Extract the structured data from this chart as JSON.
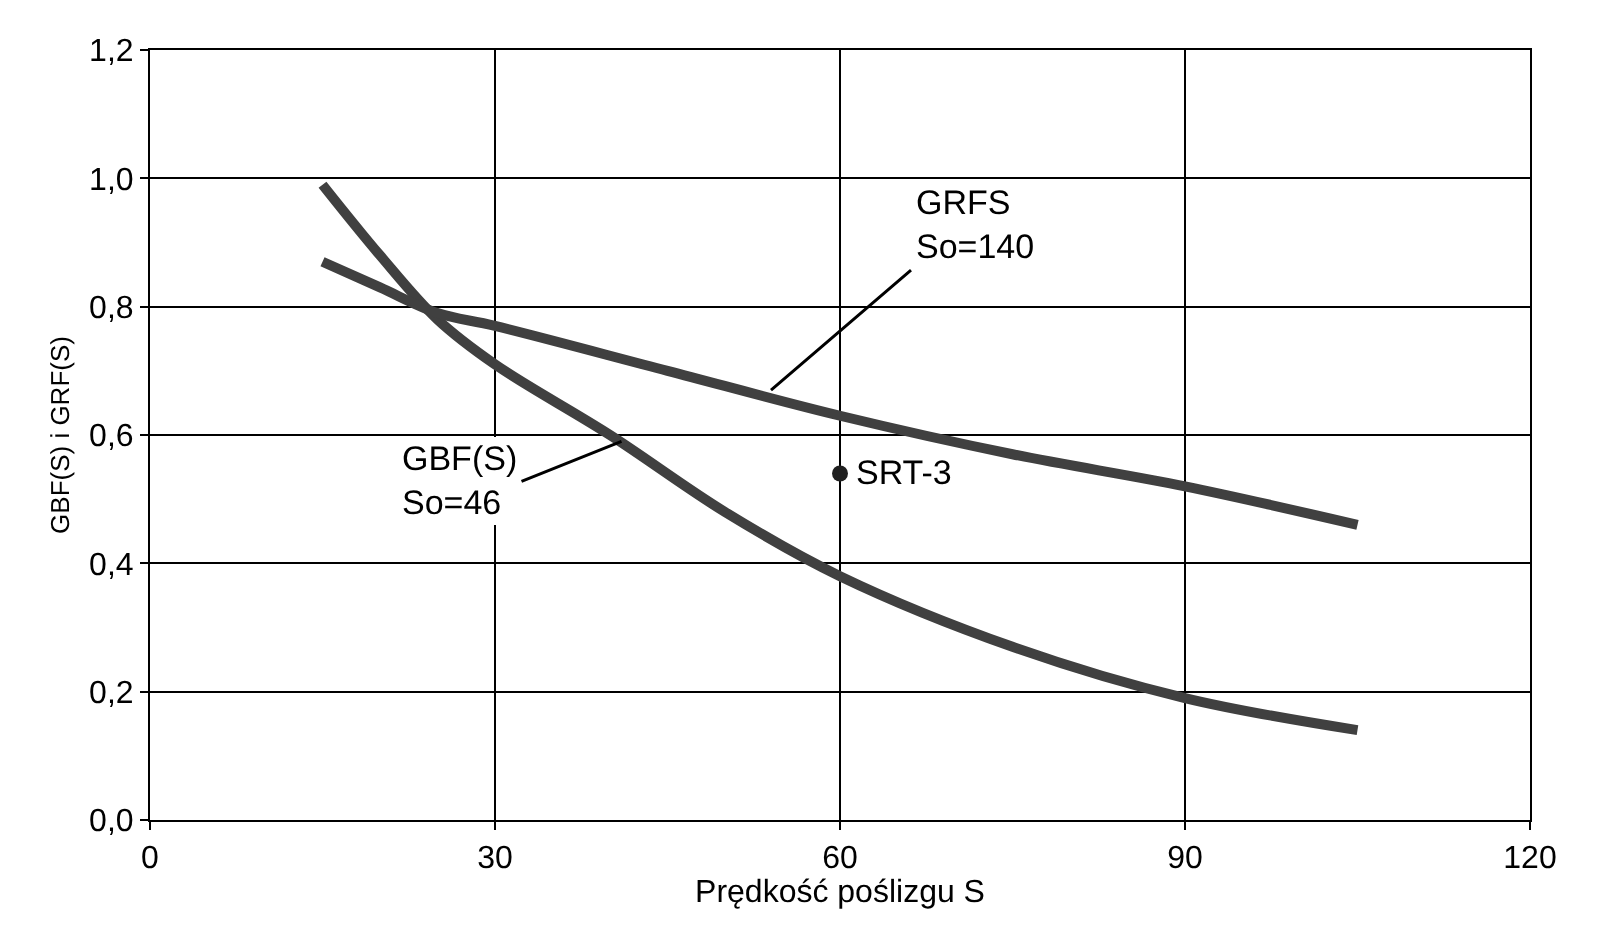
{
  "chart_data": {
    "type": "line",
    "xlabel": "Prędkość poślizgu S",
    "ylabel": "GBF(S) i GRF(S)",
    "xlim": [
      0,
      120
    ],
    "xticks": [
      0,
      30,
      60,
      90,
      120
    ],
    "ylim": [
      0,
      1.2
    ],
    "yticks": [
      {
        "value": 0,
        "label": "0,0"
      },
      {
        "value": 0.2,
        "label": "0,2"
      },
      {
        "value": 0.4,
        "label": "0,4"
      },
      {
        "value": 0.6,
        "label": "0,6"
      },
      {
        "value": 0.8,
        "label": "0,8"
      },
      {
        "value": 1.0,
        "label": "1,0"
      },
      {
        "value": 1.2,
        "label": "1,2"
      }
    ],
    "grid": true,
    "marker": "none",
    "line_style": "solid",
    "series": [
      {
        "color": "#404040",
        "x": [
          15,
          20,
          25,
          30,
          40,
          50,
          60,
          75,
          90,
          105
        ],
        "values": [
          0.99,
          0.88,
          0.78,
          0.71,
          0.6,
          0.48,
          0.38,
          0.27,
          0.19,
          0.14
        ]
      },
      {
        "color": "#404040",
        "x": [
          15,
          20,
          25,
          30,
          45,
          60,
          75,
          90,
          105
        ],
        "values": [
          0.87,
          0.83,
          0.79,
          0.77,
          0.7,
          0.63,
          0.57,
          0.52,
          0.46
        ]
      },
      {
        "type": "scatter",
        "color": "#202020",
        "marker": "circle",
        "x": [
          60
        ],
        "values": [
          0.54
        ]
      }
    ],
    "annotations": [
      {
        "text": "GRFS\nSo=140",
        "x": 54,
        "y": 0.67
      },
      {
        "text": "GBF(S)\nSo=46",
        "x": 41,
        "y": 0.59
      },
      {
        "text": "SRT-3",
        "x": 60,
        "y": 0.54
      }
    ]
  }
}
